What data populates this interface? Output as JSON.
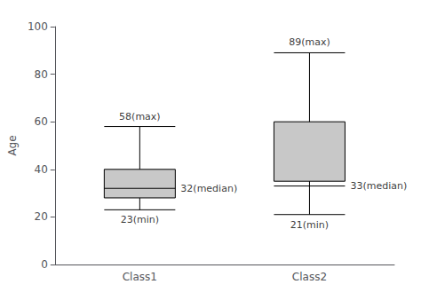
{
  "chart_data": {
    "type": "boxplot",
    "categories": [
      "Class1",
      "Class2"
    ],
    "values": [
      [
        23,
        28,
        32,
        40,
        58
      ],
      [
        21,
        35,
        33,
        60,
        89
      ]
    ],
    "ylabel": "Age",
    "ylim": [
      0,
      100
    ],
    "yticks": [
      0,
      20,
      40,
      60,
      80,
      100
    ],
    "color": "#c8c8c8",
    "grid": false,
    "annotations": [
      {
        "category": "Class1",
        "value": 58,
        "text": "58(max)"
      },
      {
        "category": "Class1",
        "value": 32,
        "text": "32(median)"
      },
      {
        "category": "Class1",
        "value": 23,
        "text": "23(min)"
      },
      {
        "category": "Class2",
        "value": 89,
        "text": "89(max)"
      },
      {
        "category": "Class2",
        "value": 33,
        "text": "33(median)"
      },
      {
        "category": "Class2",
        "value": 21,
        "text": "21(min)"
      }
    ]
  }
}
